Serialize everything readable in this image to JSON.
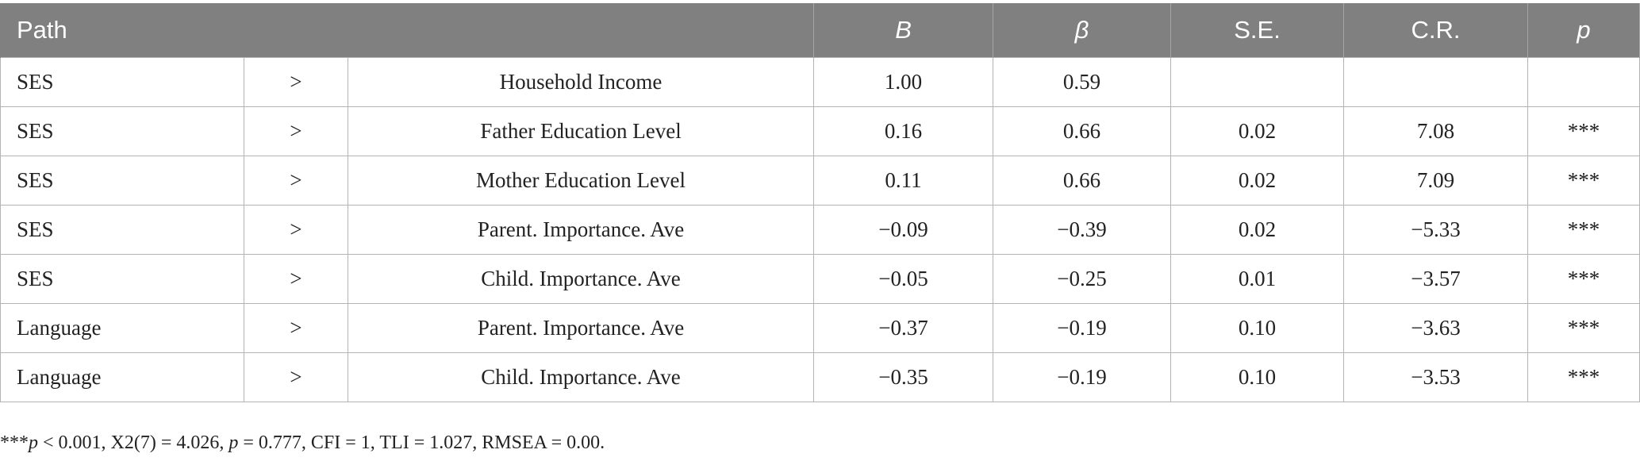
{
  "table": {
    "headers": {
      "path": "Path",
      "B": "B",
      "beta": "β",
      "se": "S.E.",
      "cr": "C.R.",
      "p": "p"
    },
    "rows": [
      {
        "source": "SES",
        "arrow": ">",
        "target": "Household Income",
        "B": "1.00",
        "beta": "0.59",
        "se": "",
        "cr": "",
        "p": ""
      },
      {
        "source": "SES",
        "arrow": ">",
        "target": "Father Education Level",
        "B": "0.16",
        "beta": "0.66",
        "se": "0.02",
        "cr": "7.08",
        "p": "***"
      },
      {
        "source": "SES",
        "arrow": ">",
        "target": "Mother Education Level",
        "B": "0.11",
        "beta": "0.66",
        "se": "0.02",
        "cr": "7.09",
        "p": "***"
      },
      {
        "source": "SES",
        "arrow": ">",
        "target": "Parent. Importance. Ave",
        "B": "−0.09",
        "beta": "−0.39",
        "se": "0.02",
        "cr": "−5.33",
        "p": "***"
      },
      {
        "source": "SES",
        "arrow": ">",
        "target": "Child. Importance. Ave",
        "B": "−0.05",
        "beta": "−0.25",
        "se": "0.01",
        "cr": "−3.57",
        "p": "***"
      },
      {
        "source": "Language",
        "arrow": ">",
        "target": "Parent. Importance. Ave",
        "B": "−0.37",
        "beta": "−0.19",
        "se": "0.10",
        "cr": "−3.63",
        "p": "***"
      },
      {
        "source": "Language",
        "arrow": ">",
        "target": "Child. Importance. Ave",
        "B": "−0.35",
        "beta": "−0.19",
        "se": "0.10",
        "cr": "−3.53",
        "p": "***"
      }
    ]
  },
  "footnote": {
    "stars": "***",
    "p_symbol": "p",
    "p_threshold": " < 0.001, X2(7) = 4.026, ",
    "p_symbol2": "p",
    "rest": " = 0.777, CFI = 1, TLI = 1.027, RMSEA = 0.00."
  }
}
